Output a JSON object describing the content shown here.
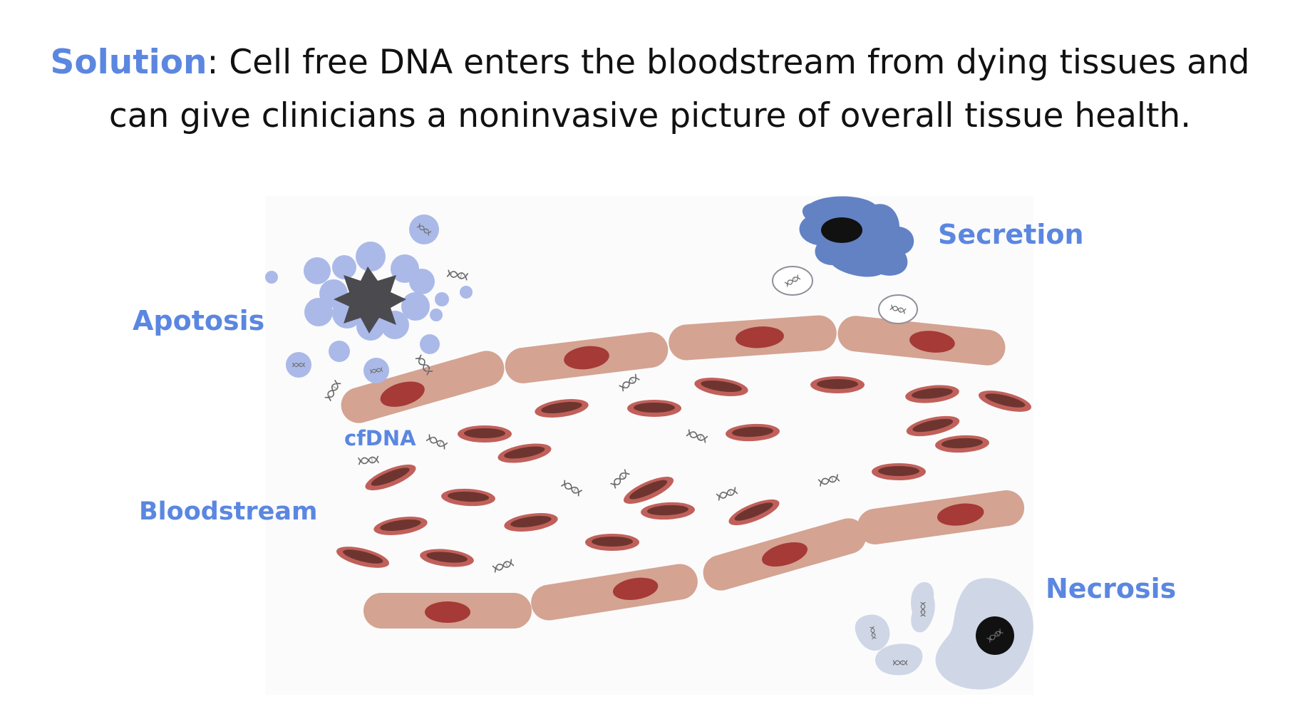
{
  "heading": {
    "highlight": "Solution",
    "line1_rest": ": Cell free DNA enters the bloodstream from dying tissues and",
    "line2": "can give clinicians a noninvasive picture of overall tissue health."
  },
  "diagram": {
    "labels": {
      "apoptosis": "Apotosis",
      "secretion": "Secretion",
      "cfdna": "cfDNA",
      "bloodstream": "Bloodstream",
      "necrosis": "Necrosis"
    }
  },
  "colors": {
    "accent": "#5b87e0",
    "vessel_cell": "#d4a392",
    "nucleus": "#a53a37",
    "red_cell_rim": "#c1605a",
    "red_cell_core": "#6e3530",
    "apoptotic_bleb": "#aab9e8",
    "secreting_cell": "#6282c4",
    "necrotic_cell": "#cfd6e6"
  }
}
